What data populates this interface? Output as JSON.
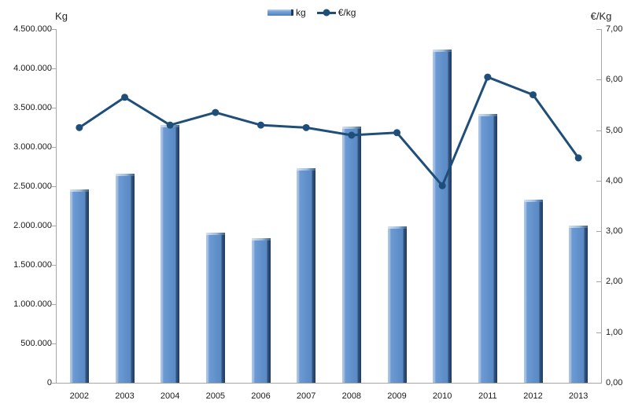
{
  "chart_data": {
    "type": "bar",
    "subtype": "bar-line-combo",
    "title": "",
    "categories": [
      "2002",
      "2003",
      "2004",
      "2005",
      "2006",
      "2007",
      "2008",
      "2009",
      "2010",
      "2011",
      "2012",
      "2013"
    ],
    "series": [
      {
        "name": "kg",
        "type": "bar",
        "axis": "left",
        "values": [
          2460000,
          2660000,
          3280000,
          1910000,
          1840000,
          2730000,
          3260000,
          1990000,
          4240000,
          3420000,
          2330000,
          2000000
        ]
      },
      {
        "name": "€/kg",
        "type": "line",
        "axis": "right",
        "values": [
          5.05,
          5.65,
          5.1,
          5.35,
          5.1,
          5.05,
          4.9,
          4.95,
          3.9,
          6.05,
          5.7,
          4.45
        ]
      }
    ],
    "left_axis": {
      "title": "Kg",
      "min": 0,
      "max": 4500000,
      "step": 500000,
      "tick_labels": [
        "4.500.000",
        "4.000.000",
        "3.500.000",
        "3.000.000",
        "2.500.000",
        "2.000.000",
        "1.500.000",
        "1.000.000",
        "500.000",
        "0"
      ]
    },
    "right_axis": {
      "title": "€/Kg",
      "min": 0,
      "max": 7,
      "step": 1,
      "tick_labels": [
        "7,00",
        "6,00",
        "5,00",
        "4,00",
        "3,00",
        "2,00",
        "1,00",
        "0,00"
      ]
    },
    "legend": {
      "position": "top-center",
      "entries": [
        "kg",
        "€/kg"
      ]
    },
    "grid": "off",
    "colors": {
      "bar_fill": "#6191cc",
      "bar_light": "#a8c3e3",
      "bar_dark": "#1e3c62",
      "line": "#1f4e79",
      "axis": "#a6a6a6",
      "text": "#262626"
    }
  }
}
